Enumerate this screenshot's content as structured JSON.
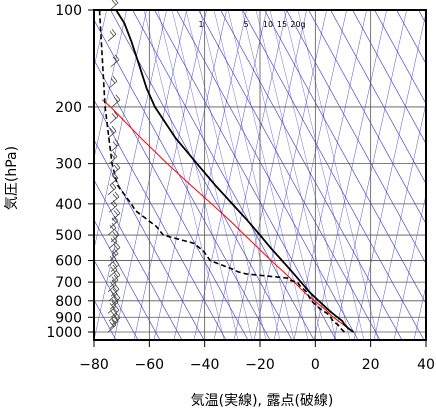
{
  "chart_data": {
    "type": "skew-t log-p sounding",
    "xlabel": "気温(実線), 露点(破線)",
    "ylabel": "気圧(hPa)",
    "xlim": [
      -80,
      40
    ],
    "ylim": [
      1050,
      100
    ],
    "x_ticks": [
      -80,
      -60,
      -40,
      -20,
      0,
      20,
      40
    ],
    "y_ticks": [
      100,
      200,
      300,
      400,
      500,
      600,
      700,
      800,
      900,
      1000
    ],
    "y_tick_labels": [
      "100",
      "200",
      "300",
      "400",
      "500",
      "600",
      "700",
      "800",
      "900",
      "1000"
    ],
    "x_tick_labels": [
      "−80",
      "−60",
      "−40",
      "−20",
      "0",
      "20",
      "40"
    ],
    "mixing_ratio_labels": [
      "1",
      "5",
      "10",
      "15",
      "20g"
    ],
    "mixing_ratios": [
      1,
      5,
      10,
      15,
      20
    ],
    "grid": true,
    "colors": {
      "temperature": "#000000",
      "dewpoint": "#000000",
      "parcel": "#ff0000",
      "adiabats": "#3333cc",
      "gridlines": "#555555",
      "wind": "#444444"
    },
    "temperature": {
      "p": [
        1000,
        975,
        950,
        925,
        900,
        875,
        850,
        800,
        750,
        700,
        650,
        600,
        550,
        500,
        450,
        400,
        350,
        300,
        250,
        200,
        175,
        150,
        125,
        110,
        100
      ],
      "t": [
        13.8,
        12.0,
        10.6,
        9.8,
        8.0,
        6.2,
        4.5,
        1.2,
        -2.2,
        -5.2,
        -8.4,
        -12.0,
        -16.0,
        -20.0,
        -24.6,
        -30.0,
        -36.2,
        -42.8,
        -50.5,
        -58.0,
        -61.0,
        -63.5,
        -66.5,
        -69.0,
        -72.0
      ]
    },
    "dewpoint": {
      "p": [
        1000,
        975,
        950,
        925,
        900,
        875,
        850,
        800,
        750,
        720,
        700,
        690,
        680,
        660,
        650,
        640,
        600,
        560,
        530,
        500,
        470,
        420,
        400,
        350,
        300,
        200,
        100
      ],
      "td": [
        10.5,
        9.2,
        8.2,
        6.4,
        5.6,
        4.2,
        2.0,
        -1.5,
        -3.2,
        -5.5,
        -6.5,
        -9.5,
        -10.0,
        -25.0,
        -28.0,
        -29.5,
        -38.0,
        -40.5,
        -44.0,
        -55.0,
        -57.5,
        -65.0,
        -66.5,
        -71.5,
        -73.5,
        -76.0,
        -78.0
      ]
    },
    "parcel": {
      "p": [
        1000,
        950,
        900,
        850,
        800,
        750,
        700,
        650,
        600,
        550,
        500,
        450,
        400,
        350,
        300,
        250,
        200,
        190
      ],
      "t": [
        13.8,
        10.2,
        6.5,
        3.5,
        -0.3,
        -4.2,
        -7.6,
        -11.5,
        -16.0,
        -20.5,
        -25.5,
        -31.0,
        -37.5,
        -45.0,
        -53.5,
        -63.0,
        -74.0,
        -77.0
      ]
    },
    "wind_p": [
      1000,
      975,
      950,
      925,
      900,
      875,
      850,
      825,
      800,
      775,
      750,
      725,
      700,
      675,
      650,
      625,
      600,
      575,
      550,
      525,
      500,
      475,
      450,
      425,
      400,
      375,
      350,
      325,
      300,
      275,
      250,
      225,
      200,
      175,
      150,
      125,
      100
    ]
  }
}
